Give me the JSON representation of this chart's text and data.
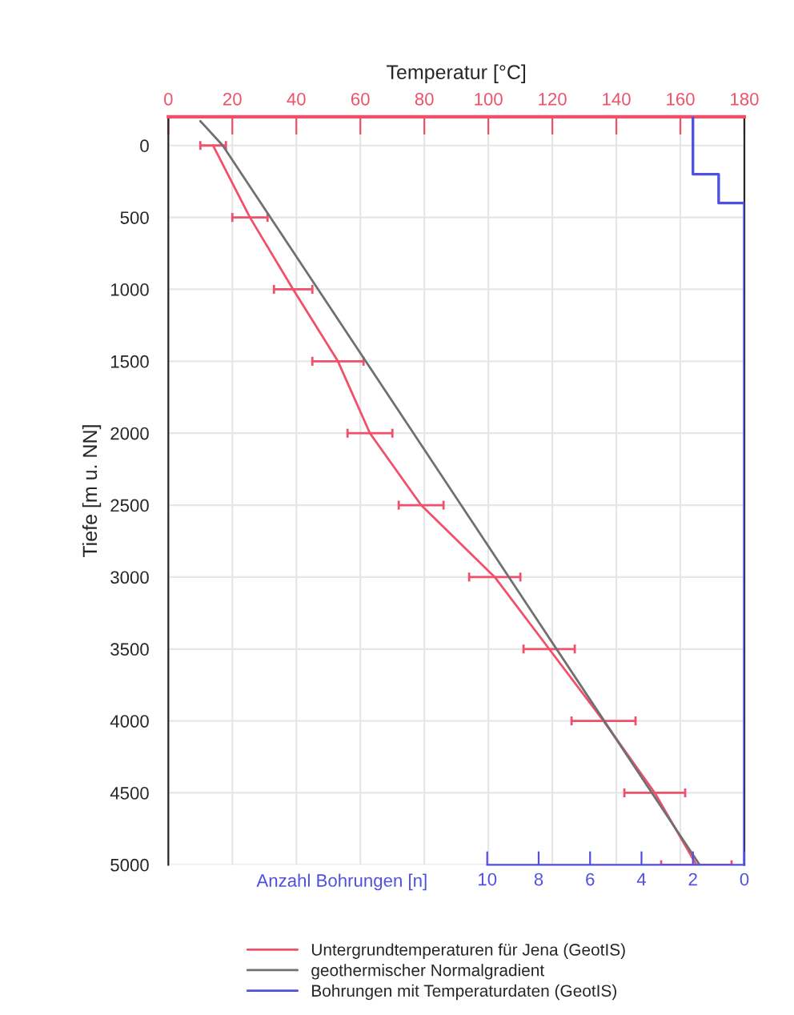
{
  "chart_data": {
    "type": "line",
    "xlabel": "Temperatur [°C]",
    "ylabel": "Tiefe [m u. NN]",
    "x2label": "Anzahl Bohrungen [n]",
    "xlim": [
      0,
      180
    ],
    "xticks": [
      0,
      20,
      40,
      60,
      80,
      100,
      120,
      140,
      160,
      180
    ],
    "x2lim": [
      22.4,
      0
    ],
    "x2ticks": [
      10,
      8,
      6,
      4,
      2,
      0
    ],
    "ylim": [
      5000,
      -200
    ],
    "yticks": [
      0,
      500,
      1000,
      1500,
      2000,
      2500,
      3000,
      3500,
      4000,
      4500,
      5000
    ],
    "grid": true,
    "legend": "bottom",
    "marker": "none",
    "line_style": "solid",
    "series": [
      {
        "name": "Untergrundtemperaturen für Jena (GeotIS)",
        "color": "#f0506a",
        "x": [
          14,
          25.5,
          39,
          53,
          63,
          79,
          102,
          119,
          136,
          152,
          165
        ],
        "values": [
          0,
          500,
          1000,
          1500,
          2000,
          2500,
          3000,
          3500,
          4000,
          4500,
          5000
        ],
        "xerrors": [
          4,
          5.5,
          6,
          8,
          7,
          7,
          8,
          8,
          10,
          9.5,
          11
        ]
      },
      {
        "name": "geothermischer Normalgradient",
        "color": "#707070",
        "x": [
          10,
          17,
          166
        ],
        "values": [
          -170,
          0,
          5000
        ]
      },
      {
        "name": "Bohrungen mit Temperaturdaten (GeotIS)",
        "color": "#5050e0",
        "type": "step",
        "axis": "x2",
        "x": [
          2,
          2,
          1,
          1,
          0,
          0
        ],
        "values": [
          -200,
          200,
          200,
          400,
          400,
          5000
        ]
      }
    ]
  }
}
